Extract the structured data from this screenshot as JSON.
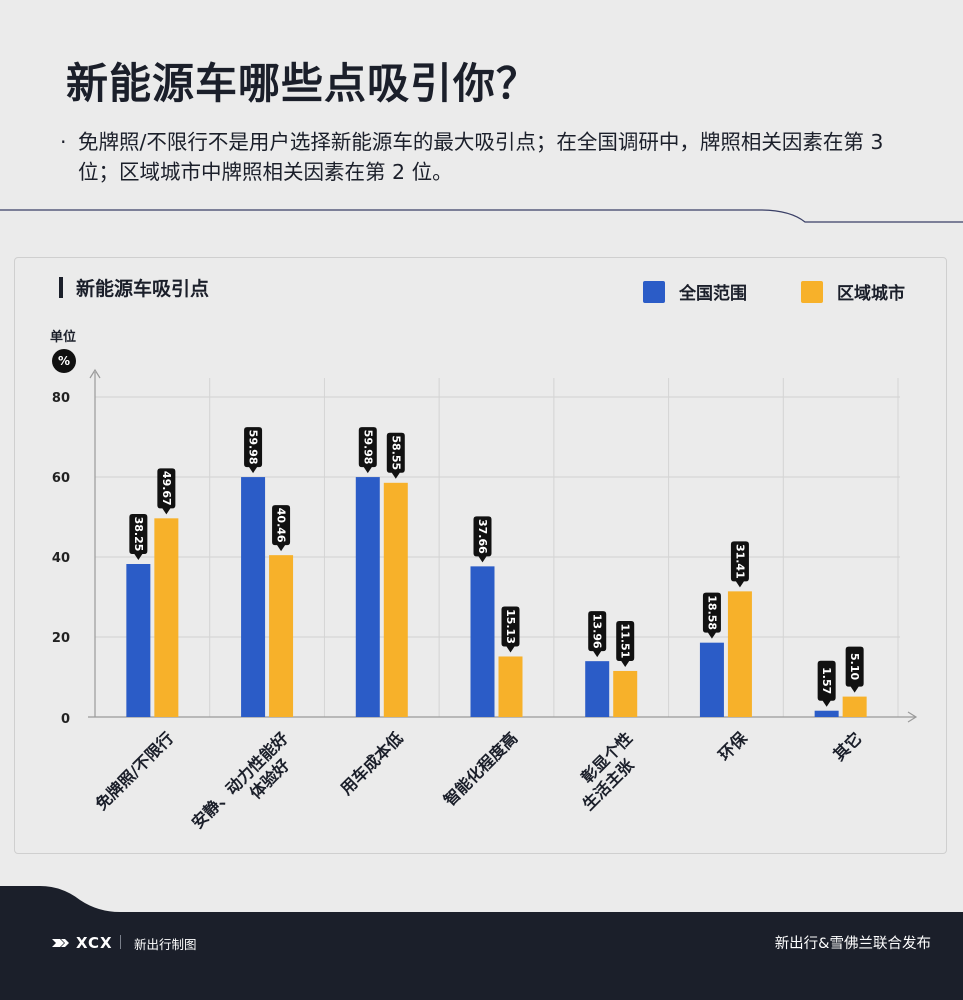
{
  "header": {
    "title": "新能源车哪些点吸引你？",
    "bullet": "·",
    "subtitle": "免牌照/不限行不是用户选择新能源车的最大吸引点；在全国调研中，牌照相关因素在第 3 位；区域城市中牌照相关因素在第 2 位。"
  },
  "card": {
    "title": "新能源车吸引点",
    "unit_label": "单位",
    "unit_symbol": "%"
  },
  "legend": [
    {
      "name": "全国范围",
      "color": "#2b5cc7"
    },
    {
      "name": "区域城市",
      "color": "#f7b12a"
    }
  ],
  "chart_data": {
    "type": "bar",
    "title": "新能源车吸引点",
    "ylabel": "单位 %",
    "ylim": [
      0,
      85
    ],
    "yticks": [
      0,
      20,
      40,
      60,
      80
    ],
    "grid": true,
    "legend_position": "top-right",
    "categories": [
      "免牌照/不限行",
      "安静、动力性能好\n体验好",
      "用车成本低",
      "智能化程度高",
      "彰显个性\n生活主张",
      "环保",
      "其它"
    ],
    "series": [
      {
        "name": "全国范围",
        "color": "#2b5cc7",
        "values": [
          38.25,
          59.98,
          59.98,
          37.66,
          13.96,
          18.58,
          1.57
        ],
        "labels": [
          "38.25",
          "59.98",
          "59.98",
          "37.66",
          "13.96",
          "18.58",
          "1.57"
        ]
      },
      {
        "name": "区域城市",
        "color": "#f7b12a",
        "values": [
          49.67,
          40.46,
          58.55,
          15.13,
          11.51,
          31.41,
          5.1
        ],
        "labels": [
          "49.67",
          "40.46",
          "58.55",
          "15.13",
          "11.51",
          "31.41",
          "5.10"
        ]
      }
    ]
  },
  "footer": {
    "logo_text": "XCX",
    "left_text": "新出行制图",
    "right_text": "新出行&雪佛兰联合发布"
  }
}
